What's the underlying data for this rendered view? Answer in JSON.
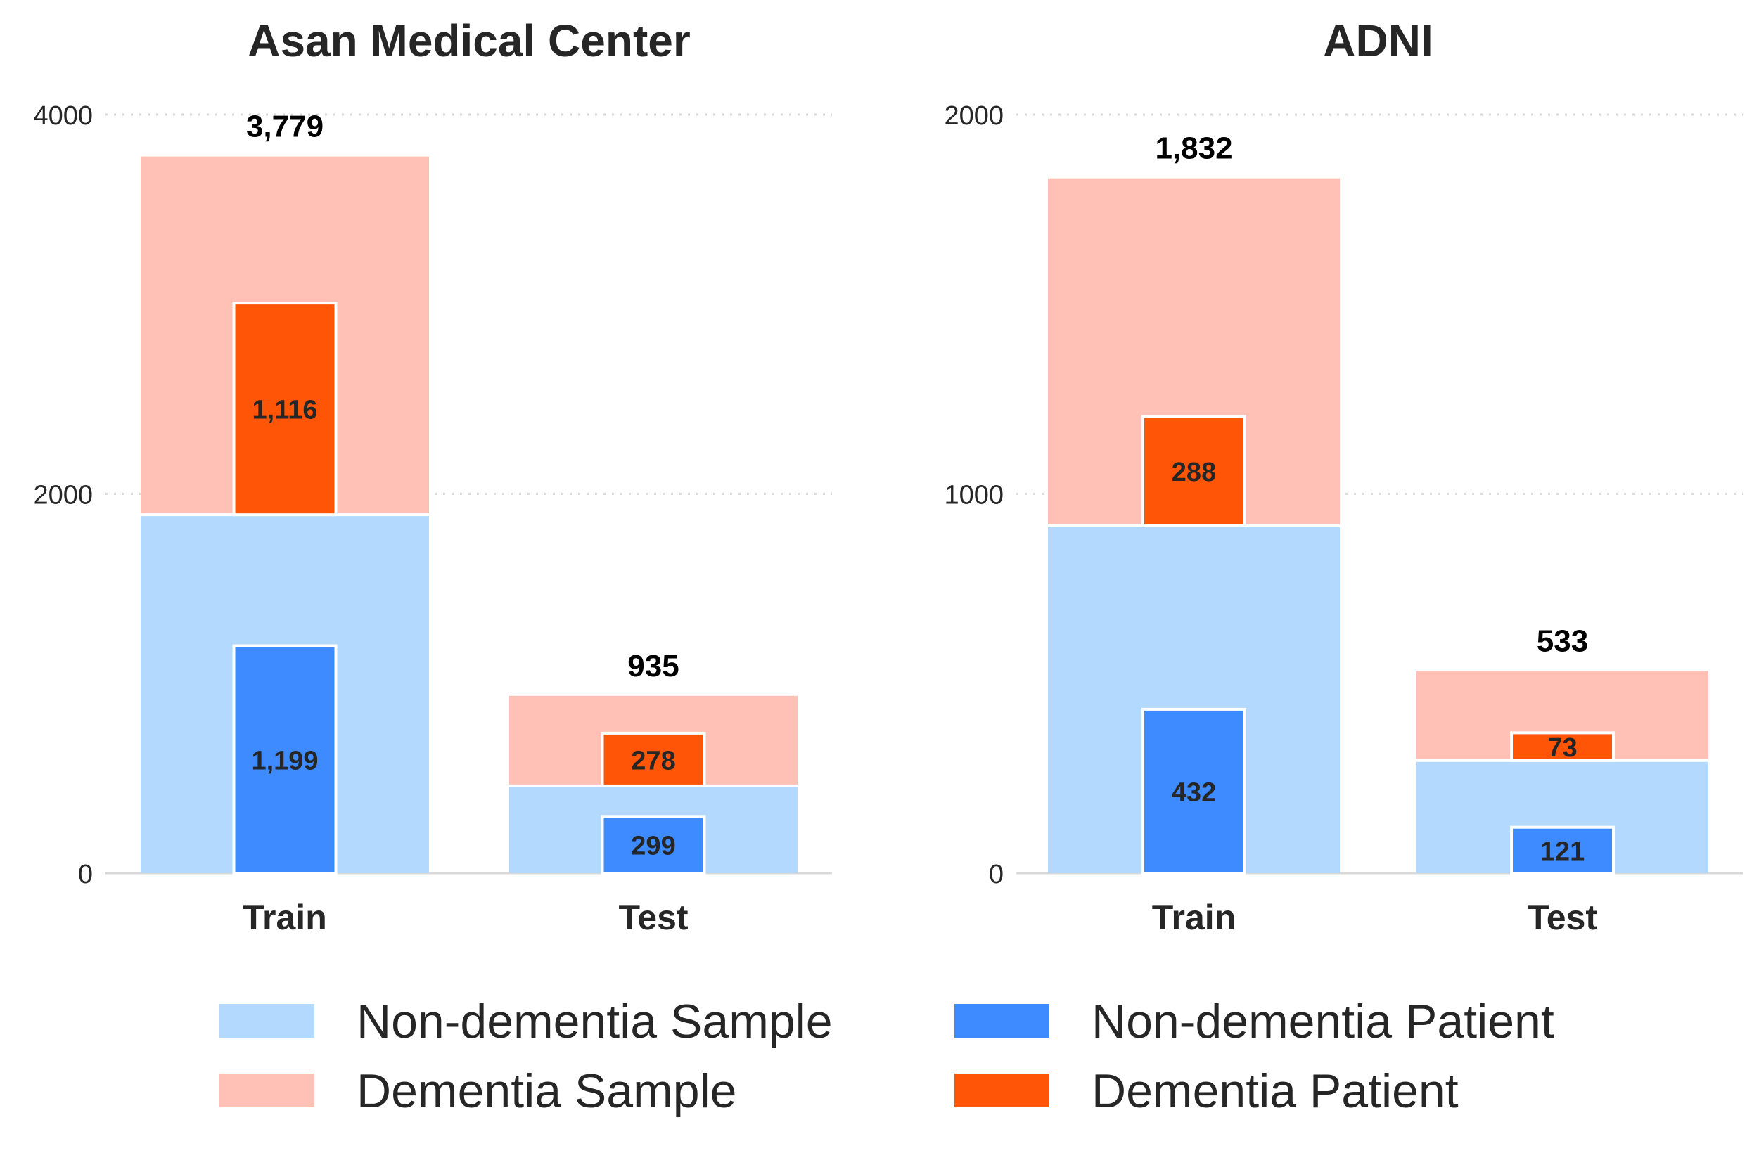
{
  "chart_data": [
    {
      "type": "bar",
      "title": "Asan Medical Center",
      "categories": [
        "Train",
        "Test"
      ],
      "ylim": [
        0,
        4000
      ],
      "yticks": [
        0,
        2000,
        4000
      ],
      "ytick_labels": [
        "0",
        "2000",
        "4000"
      ],
      "grid": "horizontal dotted",
      "sample_series": [
        {
          "name": "Non-dementia Sample",
          "values": [
            1890,
            460
          ]
        },
        {
          "name": "Dementia Sample",
          "values": [
            1889,
            475
          ]
        }
      ],
      "patient_series": [
        {
          "name": "Non-dementia Patient",
          "values": [
            1199,
            299
          ]
        },
        {
          "name": "Dementia Patient",
          "values": [
            1116,
            278
          ]
        }
      ],
      "total_labels": [
        "3,779",
        "935"
      ],
      "patient_labels": {
        "non_dementia": [
          "1,199",
          "299"
        ],
        "dementia": [
          "1,116",
          "278"
        ]
      }
    },
    {
      "type": "bar",
      "title": "ADNI",
      "categories": [
        "Train",
        "Test"
      ],
      "ylim": [
        0,
        2000
      ],
      "yticks": [
        0,
        1000,
        2000
      ],
      "ytick_labels": [
        "0",
        "1000",
        "2000"
      ],
      "grid": "horizontal dotted",
      "sample_series": [
        {
          "name": "Non-dementia Sample",
          "values": [
            916,
            297
          ]
        },
        {
          "name": "Dementia Sample",
          "values": [
            916,
            236
          ]
        }
      ],
      "patient_series": [
        {
          "name": "Non-dementia Patient",
          "values": [
            432,
            121
          ]
        },
        {
          "name": "Dementia Patient",
          "values": [
            288,
            73
          ]
        }
      ],
      "total_labels": [
        "1,832",
        "533"
      ],
      "patient_labels": {
        "non_dementia": [
          "432",
          "121"
        ],
        "dementia": [
          "288",
          "73"
        ]
      }
    }
  ],
  "legend": {
    "position": "bottom",
    "items": [
      {
        "label": "Non-dementia Sample",
        "color": "#b3d9ff"
      },
      {
        "label": "Non-dementia Patient",
        "color": "#3d8bff"
      },
      {
        "label": "Dementia Sample",
        "color": "#ffc1b6"
      },
      {
        "label": "Dementia Patient",
        "color": "#ff5506"
      }
    ]
  },
  "colors": {
    "non_dementia_sample": "#b3d9ff",
    "dementia_sample": "#ffc1b6",
    "non_dementia_patient": "#3d8bff",
    "dementia_patient": "#ff5506",
    "axis": "#d9d9d9",
    "grid": "#d9d9d9"
  }
}
